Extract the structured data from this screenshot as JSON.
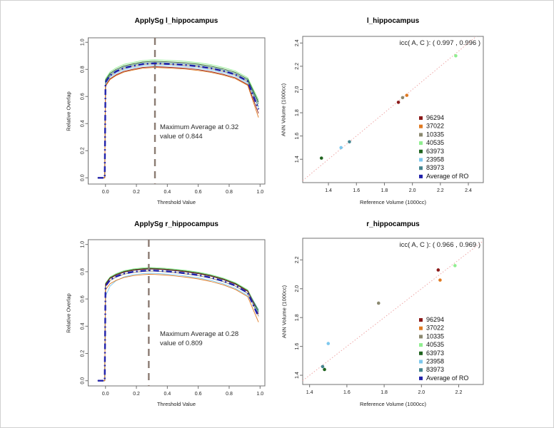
{
  "figure": {
    "background": "#ffffff",
    "border_color": "#d0d0d0"
  },
  "palette": {
    "96294": "#8b1a1a",
    "37022": "#e07a22",
    "10335": "#8b8970",
    "40535": "#90ee90",
    "63973": "#20641f",
    "23958": "#7ec8ee",
    "83973": "#44858f",
    "average": "#2121aa"
  },
  "identity_line_color": "#eea6a6",
  "chart_data": [
    {
      "type": "line",
      "title": "ApplySg l_hippocampus",
      "xlabel": "Threshold Value",
      "ylabel": "Relative Overlap",
      "x_ticks": [
        "0.0",
        "0.2",
        "0.4",
        "0.6",
        "0.8",
        "1.0"
      ],
      "y_ticks": [
        "0.0",
        "0.2",
        "0.4",
        "0.6",
        "0.8",
        "1.0"
      ],
      "xlim": [
        -0.112,
        1.031
      ],
      "ylim": [
        -0.046,
        1.033
      ],
      "max_threshold": 0.32,
      "max_value": 0.844,
      "annotation": [
        "Maximum Average at  0.32",
        "value of  0.844"
      ],
      "vline_color": "#8b7b72",
      "average_label": "Average of RO",
      "x": [
        -0.05,
        -0.005,
        0,
        0.03,
        0.07,
        0.12,
        0.18,
        0.24,
        0.3,
        0.32,
        0.38,
        0.45,
        0.52,
        0.6,
        0.68,
        0.76,
        0.84,
        0.92,
        0.99
      ],
      "average_y": [
        0,
        0,
        0.705,
        0.755,
        0.785,
        0.81,
        0.825,
        0.838,
        0.843,
        0.844,
        0.841,
        0.837,
        0.832,
        0.822,
        0.808,
        0.788,
        0.762,
        0.712,
        0.505
      ],
      "series": [
        {
          "name": "40535",
          "offset": 0.027,
          "end_y": 0.575
        },
        {
          "name": "63973",
          "offset": 0.016,
          "end_y": 0.56
        },
        {
          "name": "83973",
          "offset": 0.007,
          "end_y": 0.545
        },
        {
          "name": "10335",
          "offset": -0.003,
          "end_y": 0.525
        },
        {
          "name": "23958",
          "offset": -0.013,
          "end_y": 0.515
        },
        {
          "name": "96294",
          "offset": -0.024,
          "end_y": 0.475
        },
        {
          "name": "37022",
          "offset": -0.03,
          "end_y": 0.445
        }
      ]
    },
    {
      "type": "scatter",
      "title": "l_hippocampus",
      "xlabel": "Reference Volume (1000cc)",
      "ylabel": "ANN Volume (1000cc)",
      "icc_label": "icc( A, C ): ( 0.997 , 0.996 )",
      "icc_A": 0.997,
      "icc_C": 0.996,
      "ticks": [
        "1.4",
        "1.6",
        "1.8",
        "2.0",
        "2.2",
        "2.4"
      ],
      "xlim": [
        1.216,
        2.507
      ],
      "ylim": [
        1.199,
        2.457
      ],
      "points": [
        {
          "name": "96294",
          "x": 1.9,
          "y": 1.89
        },
        {
          "name": "37022",
          "x": 1.96,
          "y": 1.95
        },
        {
          "name": "10335",
          "x": 1.93,
          "y": 1.93
        },
        {
          "name": "40535",
          "x": 2.31,
          "y": 2.29
        },
        {
          "name": "63973",
          "x": 1.35,
          "y": 1.41
        },
        {
          "name": "23958",
          "x": 1.49,
          "y": 1.5
        },
        {
          "name": "83973",
          "x": 1.55,
          "y": 1.55
        }
      ],
      "legend": [
        "96294",
        "37022",
        "10335",
        "40535",
        "63973",
        "23958",
        "83973",
        "Average of RO"
      ]
    },
    {
      "type": "line",
      "title": "ApplySg r_hippocampus",
      "xlabel": "Threshold Value",
      "ylabel": "Relative Overlap",
      "x_ticks": [
        "0.0",
        "0.2",
        "0.4",
        "0.6",
        "0.8",
        "1.0"
      ],
      "y_ticks": [
        "0.0",
        "0.2",
        "0.4",
        "0.6",
        "0.8",
        "1.0"
      ],
      "xlim": [
        -0.112,
        1.031
      ],
      "ylim": [
        -0.038,
        1.035
      ],
      "max_threshold": 0.28,
      "max_value": 0.809,
      "annotation": [
        "Maximum Average at  0.28",
        "value of  0.809"
      ],
      "vline_color": "#8b7b72",
      "average_label": "Average of RO",
      "x": [
        -0.05,
        -0.005,
        0,
        0.03,
        0.07,
        0.12,
        0.18,
        0.24,
        0.28,
        0.32,
        0.38,
        0.45,
        0.52,
        0.6,
        0.68,
        0.76,
        0.84,
        0.92,
        0.99
      ],
      "average_y": [
        0,
        0,
        0.695,
        0.74,
        0.765,
        0.786,
        0.799,
        0.806,
        0.809,
        0.808,
        0.804,
        0.797,
        0.788,
        0.775,
        0.757,
        0.732,
        0.698,
        0.645,
        0.47
      ],
      "series": [
        {
          "name": "40535",
          "offset": 0.022,
          "end_y": 0.515
        },
        {
          "name": "63973",
          "offset": 0.016,
          "end_y": 0.505
        },
        {
          "name": "83973",
          "offset": 0.01,
          "end_y": 0.52
        },
        {
          "name": "96294",
          "offset": 0.012,
          "end_y": 0.49
        },
        {
          "name": "10335",
          "offset": -0.004,
          "end_y": 0.475
        },
        {
          "name": "23958",
          "offset": -0.02,
          "end_y": 0.5,
          "head_y": [
            0.62,
            0.695,
            0.735,
            0.762
          ]
        },
        {
          "name": "37022",
          "offset": -0.028,
          "end_y": 0.43
        }
      ]
    },
    {
      "type": "scatter",
      "title": "r_hippocampus",
      "xlabel": "Reference Volume (1000cc)",
      "ylabel": "ANN Volume (1000cc)",
      "icc_label": "icc( A, C ): ( 0.966 , 0.969 )",
      "icc_A": 0.966,
      "icc_C": 0.969,
      "ticks": [
        "1.4",
        "1.6",
        "1.8",
        "2.0",
        "2.2"
      ],
      "xlim": [
        1.363,
        2.332
      ],
      "ylim": [
        1.336,
        2.35
      ],
      "points": [
        {
          "name": "96294",
          "x": 2.09,
          "y": 2.13
        },
        {
          "name": "37022",
          "x": 2.1,
          "y": 2.06
        },
        {
          "name": "10335",
          "x": 1.77,
          "y": 1.9
        },
        {
          "name": "40535",
          "x": 2.18,
          "y": 2.16
        },
        {
          "name": "63973",
          "x": 1.48,
          "y": 1.44
        },
        {
          "name": "23958",
          "x": 1.5,
          "y": 1.62
        },
        {
          "name": "83973",
          "x": 1.47,
          "y": 1.46
        }
      ],
      "legend": [
        "96294",
        "37022",
        "10335",
        "40535",
        "63973",
        "23958",
        "83973",
        "Average of RO"
      ]
    }
  ]
}
